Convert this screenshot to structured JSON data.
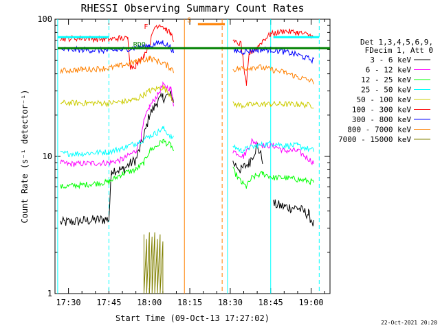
{
  "chart_data": {
    "type": "line",
    "title": "RHESSI Observing Summary Count Rates",
    "xlabel": "Start Time (09-Oct-13 17:27:02)",
    "ylabel": "Count Rate (s⁻¹ detector⁻¹)",
    "x_unit": "minutes after 17:27:02",
    "xlim_clock": [
      "17:25",
      "19:07"
    ],
    "x_ticks": [
      "17:30",
      "17:45",
      "18:00",
      "18:15",
      "18:30",
      "18:45",
      "19:00"
    ],
    "y_scale": "log",
    "ylim": [
      1,
      100
    ],
    "y_ticks": [
      "1",
      "10",
      "100"
    ],
    "legend_header": [
      "Det 1,3,4,5,6,9,",
      "FDecim 1, Att 0"
    ],
    "series": [
      {
        "name": "3 - 6 keV",
        "color": "#000000",
        "points": [
          [
            "17:27",
            3.3
          ],
          [
            "17:45",
            3.5
          ],
          [
            "17:46",
            8
          ],
          [
            "17:50",
            8
          ],
          [
            "17:55",
            9.5
          ],
          [
            "17:58",
            14
          ],
          [
            "18:00",
            20
          ],
          [
            "18:03",
            25
          ],
          [
            "18:05",
            27
          ],
          [
            "18:08",
            28
          ],
          [
            "18:09",
            26
          ],
          [
            "18:10",
            null
          ],
          [
            "18:30",
            null
          ],
          [
            "18:31",
            9
          ],
          [
            "18:34",
            8
          ],
          [
            "18:37",
            9
          ],
          [
            "18:40",
            12
          ],
          [
            "18:42",
            9.5
          ],
          [
            "18:43",
            null
          ],
          [
            "18:46",
            4.5
          ],
          [
            "18:50",
            4.3
          ],
          [
            "18:55",
            4.2
          ],
          [
            "18:59",
            3.8
          ],
          [
            "19:01",
            3.2
          ]
        ]
      },
      {
        "name": "6 - 12 keV",
        "color": "#ff00ff",
        "points": [
          [
            "17:27",
            9
          ],
          [
            "17:30",
            8.8
          ],
          [
            "17:45",
            9
          ],
          [
            "17:50",
            9.5
          ],
          [
            "17:55",
            11
          ],
          [
            "17:57",
            14
          ],
          [
            "17:58",
            18
          ],
          [
            "18:00",
            23
          ],
          [
            "18:03",
            28
          ],
          [
            "18:05",
            33
          ],
          [
            "18:08",
            31
          ],
          [
            "18:09",
            24
          ],
          [
            "18:10",
            null
          ],
          [
            "18:30",
            null
          ],
          [
            "18:31",
            11
          ],
          [
            "18:35",
            10
          ],
          [
            "18:38",
            13
          ],
          [
            "18:42",
            12
          ],
          [
            "18:46",
            12
          ],
          [
            "18:50",
            11
          ],
          [
            "18:55",
            11
          ],
          [
            "19:01",
            9
          ]
        ]
      },
      {
        "name": "12 - 25 keV",
        "color": "#00ff00",
        "points": [
          [
            "17:27",
            6
          ],
          [
            "17:35",
            6.2
          ],
          [
            "17:45",
            6.5
          ],
          [
            "17:50",
            7.5
          ],
          [
            "17:55",
            8
          ],
          [
            "17:58",
            9
          ],
          [
            "18:00",
            11
          ],
          [
            "18:03",
            12
          ],
          [
            "18:05",
            13
          ],
          [
            "18:08",
            12
          ],
          [
            "18:09",
            11
          ],
          [
            "18:10",
            null
          ],
          [
            "18:30",
            null
          ],
          [
            "18:31",
            8
          ],
          [
            "18:34",
            6.5
          ],
          [
            "18:36",
            6
          ],
          [
            "18:38",
            7
          ],
          [
            "18:42",
            7.5
          ],
          [
            "18:46",
            7
          ],
          [
            "18:50",
            7
          ],
          [
            "18:55",
            6.8
          ],
          [
            "19:01",
            6.5
          ]
        ]
      },
      {
        "name": "25 - 50 keV",
        "color": "#00ffff",
        "points": [
          [
            "17:27",
            10.5
          ],
          [
            "17:35",
            10.5
          ],
          [
            "17:45",
            10.8
          ],
          [
            "17:50",
            11.5
          ],
          [
            "17:55",
            12.5
          ],
          [
            "18:00",
            14
          ],
          [
            "18:03",
            15
          ],
          [
            "18:05",
            16
          ],
          [
            "18:08",
            14
          ],
          [
            "18:09",
            13.5
          ],
          [
            "18:10",
            null
          ],
          [
            "18:30",
            null
          ],
          [
            "18:31",
            12
          ],
          [
            "18:34",
            11
          ],
          [
            "18:37",
            11.5
          ],
          [
            "18:40",
            12
          ],
          [
            "18:46",
            12.5
          ],
          [
            "18:50",
            12
          ],
          [
            "18:55",
            12
          ],
          [
            "19:01",
            11
          ]
        ]
      },
      {
        "name": "50 - 100 keV",
        "color": "#cccc00",
        "points": [
          [
            "17:27",
            24.5
          ],
          [
            "17:35",
            24.5
          ],
          [
            "17:45",
            24.5
          ],
          [
            "17:50",
            25
          ],
          [
            "17:53",
            25.5
          ],
          [
            "17:55",
            26
          ],
          [
            "18:00",
            30
          ],
          [
            "18:05",
            32
          ],
          [
            "18:08",
            28
          ],
          [
            "18:09",
            25
          ],
          [
            "18:10",
            null
          ],
          [
            "18:30",
            null
          ],
          [
            "18:31",
            24
          ],
          [
            "18:35",
            23.5
          ],
          [
            "18:40",
            24
          ],
          [
            "18:45",
            24
          ],
          [
            "18:50",
            24
          ],
          [
            "18:55",
            24
          ],
          [
            "19:01",
            23.5
          ]
        ]
      },
      {
        "name": "100 - 300 keV",
        "color": "#ff0000",
        "points": [
          [
            "17:27",
            72
          ],
          [
            "17:35",
            73
          ],
          [
            "17:45",
            71
          ],
          [
            "17:49",
            73
          ],
          [
            "17:52",
            72
          ],
          [
            "17:53",
            45
          ],
          [
            "17:55",
            46
          ],
          [
            "17:58",
            55
          ],
          [
            "18:00",
            65
          ],
          [
            "18:02",
            88
          ],
          [
            "18:04",
            92
          ],
          [
            "18:06",
            85
          ],
          [
            "18:08",
            78
          ],
          [
            "18:09",
            72
          ],
          [
            "18:10",
            null
          ],
          [
            "18:30",
            null
          ],
          [
            "18:31",
            68
          ],
          [
            "18:34",
            66
          ],
          [
            "18:36",
            32
          ],
          [
            "18:37",
            56
          ],
          [
            "18:40",
            62
          ],
          [
            "18:42",
            70
          ],
          [
            "18:45",
            78
          ],
          [
            "18:50",
            82
          ],
          [
            "18:55",
            80
          ],
          [
            "19:00",
            76
          ],
          [
            "19:01",
            72
          ]
        ]
      },
      {
        "name": "300 - 800 keV",
        "color": "#0000ff",
        "points": [
          [
            "17:27",
            60
          ],
          [
            "17:35",
            60
          ],
          [
            "17:45",
            59
          ],
          [
            "17:50",
            60
          ],
          [
            "17:55",
            62
          ],
          [
            "18:00",
            64
          ],
          [
            "18:05",
            68
          ],
          [
            "18:08",
            62
          ],
          [
            "18:09",
            58
          ],
          [
            "18:10",
            null
          ],
          [
            "18:30",
            null
          ],
          [
            "18:31",
            59
          ],
          [
            "18:35",
            58
          ],
          [
            "18:40",
            60
          ],
          [
            "18:45",
            60
          ],
          [
            "18:50",
            58
          ],
          [
            "18:55",
            55
          ],
          [
            "19:01",
            50
          ]
        ]
      },
      {
        "name": "800 - 7000 keV",
        "color": "#ff8000",
        "points": [
          [
            "17:27",
            42
          ],
          [
            "17:35",
            43
          ],
          [
            "17:45",
            44
          ],
          [
            "17:50",
            46
          ],
          [
            "17:55",
            49
          ],
          [
            "18:00",
            52
          ],
          [
            "18:05",
            48
          ],
          [
            "18:08",
            44
          ],
          [
            "18:09",
            42
          ],
          [
            "18:10",
            null
          ],
          [
            "18:30",
            null
          ],
          [
            "18:31",
            43
          ],
          [
            "18:35",
            44
          ],
          [
            "18:40",
            45
          ],
          [
            "18:45",
            43
          ],
          [
            "18:50",
            41
          ],
          [
            "18:55",
            38
          ],
          [
            "19:01",
            35
          ]
        ]
      },
      {
        "name": "7000 - 15000 keV",
        "color": "#808000",
        "points": [
          [
            "17:58",
            1
          ],
          [
            "17:58",
            2.7
          ],
          [
            "17:58",
            1
          ],
          [
            "17:59",
            2.5
          ],
          [
            "17:59",
            1
          ],
          [
            "18:00",
            2.8
          ],
          [
            "18:00",
            1
          ],
          [
            "18:01",
            2.6
          ],
          [
            "18:01",
            1
          ],
          [
            "18:02",
            2.8
          ],
          [
            "18:02",
            1
          ],
          [
            "18:03",
            2.5
          ],
          [
            "18:03",
            1
          ],
          [
            "18:04",
            2.7
          ],
          [
            "18:04",
            1
          ],
          [
            "18:05",
            2.4
          ],
          [
            "18:05",
            1
          ]
        ]
      }
    ],
    "annotations": [
      {
        "text": "F",
        "color": "#ff0000",
        "x": "17:58",
        "y": 85
      },
      {
        "text": "RDO",
        "color": "#008000",
        "x": "17:54",
        "y": 63
      },
      {
        "text": "S",
        "color": "#ff8000",
        "x": "18:14",
        "y": 95
      }
    ],
    "markers": {
      "saa_segments": [
        [
          "17:26",
          "17:45"
        ],
        [
          "18:46",
          "19:03"
        ]
      ],
      "rdo_segments": [
        [
          "17:26",
          "19:07"
        ]
      ],
      "attenuator_segments": [
        [
          "18:18",
          "18:28"
        ]
      ],
      "vertical_lines": [
        {
          "x": "17:26",
          "color": "#00ffff",
          "dash": false
        },
        {
          "x": "17:45",
          "color": "#00ffff",
          "dash": true
        },
        {
          "x": "18:13",
          "color": "#ff8000",
          "dash": false
        },
        {
          "x": "18:27",
          "color": "#ff8000",
          "dash": true
        },
        {
          "x": "18:29",
          "color": "#00ffff",
          "dash": false
        },
        {
          "x": "18:45",
          "color": "#00ffff",
          "dash": false
        },
        {
          "x": "19:03",
          "color": "#00ffff",
          "dash": true
        }
      ]
    }
  },
  "footer": {
    "timestamp": "22-Oct-2021 20:20"
  }
}
